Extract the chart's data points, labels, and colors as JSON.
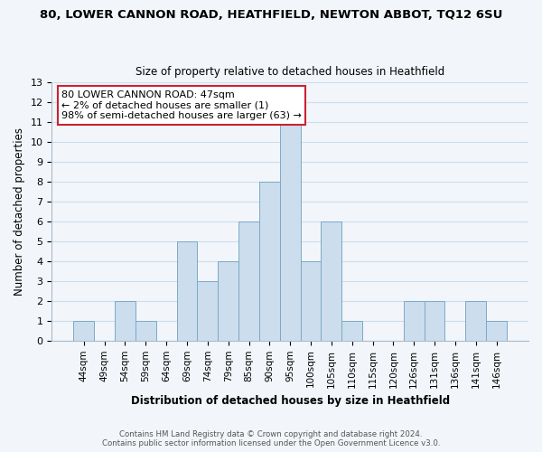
{
  "title_line1": "80, LOWER CANNON ROAD, HEATHFIELD, NEWTON ABBOT, TQ12 6SU",
  "title_line2": "Size of property relative to detached houses in Heathfield",
  "xlabel": "Distribution of detached houses by size in Heathfield",
  "ylabel": "Number of detached properties",
  "bar_fill_color": "#ccdded",
  "bar_edge_color": "#7aaac8",
  "highlight_color": "#cc2233",
  "categories": [
    "44sqm",
    "49sqm",
    "54sqm",
    "59sqm",
    "64sqm",
    "69sqm",
    "74sqm",
    "79sqm",
    "85sqm",
    "90sqm",
    "95sqm",
    "100sqm",
    "105sqm",
    "110sqm",
    "115sqm",
    "120sqm",
    "126sqm",
    "131sqm",
    "136sqm",
    "141sqm",
    "146sqm"
  ],
  "values": [
    1,
    0,
    2,
    1,
    0,
    5,
    3,
    4,
    6,
    8,
    11,
    4,
    6,
    1,
    0,
    0,
    2,
    2,
    0,
    2,
    1
  ],
  "highlight_index": 0,
  "ylim": [
    0,
    13
  ],
  "yticks": [
    0,
    1,
    2,
    3,
    4,
    5,
    6,
    7,
    8,
    9,
    10,
    11,
    12,
    13
  ],
  "annotation_text": "80 LOWER CANNON ROAD: 47sqm\n← 2% of detached houses are smaller (1)\n98% of semi-detached houses are larger (63) →",
  "annotation_box_facecolor": "#ffffff",
  "annotation_box_edgecolor": "#cc2233",
  "footer_line1": "Contains HM Land Registry data © Crown copyright and database right 2024.",
  "footer_line2": "Contains public sector information licensed under the Open Government Licence v3.0.",
  "grid_color": "#ccddee",
  "background_color": "#f2f6fa"
}
